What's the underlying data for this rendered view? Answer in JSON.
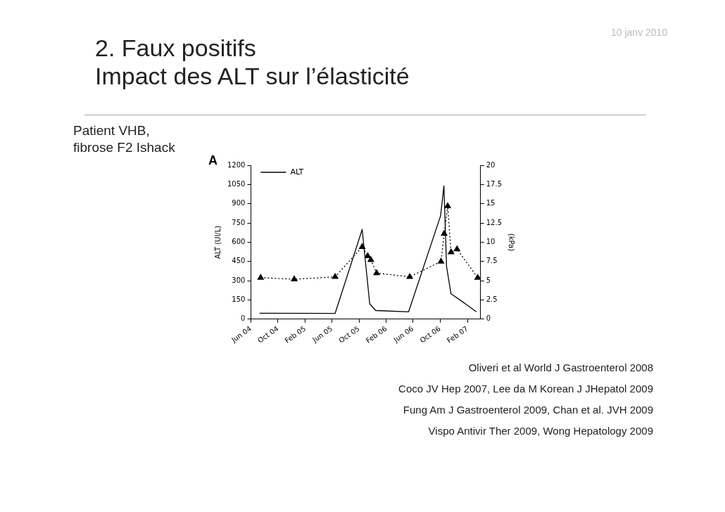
{
  "chart_data": {
    "type": "line",
    "title": "2. Faux positifs\nImpact des ALT sur l’élasticité",
    "subtitle": "Patient VHB,\nfibrose F2 Ishack",
    "ylabel": "ALT (UI/L)",
    "y2label": "(kPa)",
    "annotations": [
      "10 janv 2010",
      "A",
      "Oliveri et al World J Gastroenterol 2008",
      "Coco JV Hep 2007, Lee da M Korean J JHepatol 2009",
      "Fung Am J Gastroenterol 2009, Chan et al. JVH 2009",
      "Vispo Antivir Ther 2009, Wong  Hepatology 2009"
    ],
    "xlim": [
      "2004-06-01",
      "2007-04-01"
    ],
    "xticks": [
      {
        "value": "2004-06-01",
        "label": "Jun 04"
      },
      {
        "value": "2004-10-01",
        "label": "Oct 04"
      },
      {
        "value": "2005-02-01",
        "label": "Feb 05"
      },
      {
        "value": "2005-06-01",
        "label": "Jun 05"
      },
      {
        "value": "2005-10-01",
        "label": "Oct 05"
      },
      {
        "value": "2006-02-01",
        "label": "Feb 06"
      },
      {
        "value": "2006-06-01",
        "label": "Jun 06"
      },
      {
        "value": "2006-10-01",
        "label": "Oct 06"
      },
      {
        "value": "2007-02-01",
        "label": "Feb 07"
      }
    ],
    "ylim": [
      0,
      1200
    ],
    "yticks": [
      0,
      150,
      300,
      450,
      600,
      750,
      900,
      1050,
      1200
    ],
    "y2lim": [
      0,
      20
    ],
    "y2ticks": [
      0,
      2.5,
      5,
      7.5,
      10,
      12.5,
      15,
      17.5,
      20
    ],
    "grid": false,
    "legend": "top left",
    "series": [
      {
        "name": "ALT",
        "color": "#000000",
        "marker": "none",
        "line_style": "solid",
        "x": [
          "2004-07-10",
          "2005-06-15",
          "2005-10-15",
          "2005-11-18",
          "2005-12-15",
          "2006-05-12",
          "2006-10-03",
          "2006-10-18",
          "2006-10-30",
          "2006-11-19",
          "2007-01-18",
          "2007-03-13"
        ],
        "values": [
          47,
          45,
          700,
          120,
          68,
          58,
          806,
          1039,
          408,
          198,
          126,
          58
        ]
      },
      {
        "color": "#000000",
        "marker": "triangle",
        "line_style": "dotted",
        "axis": "y2",
        "x": [
          "2004-07-15",
          "2004-12-13",
          "2005-06-15",
          "2005-10-15",
          "2005-11-09",
          "2005-11-23",
          "2005-12-19",
          "2006-05-17",
          "2006-10-05",
          "2006-10-19",
          "2006-11-04",
          "2006-11-19",
          "2006-12-16",
          "2007-03-19"
        ],
        "values": [
          5.4,
          5.2,
          5.5,
          9.4,
          8.2,
          7.7,
          6.0,
          5.5,
          7.5,
          11.1,
          14.7,
          8.7,
          9.1,
          5.4
        ]
      }
    ]
  }
}
